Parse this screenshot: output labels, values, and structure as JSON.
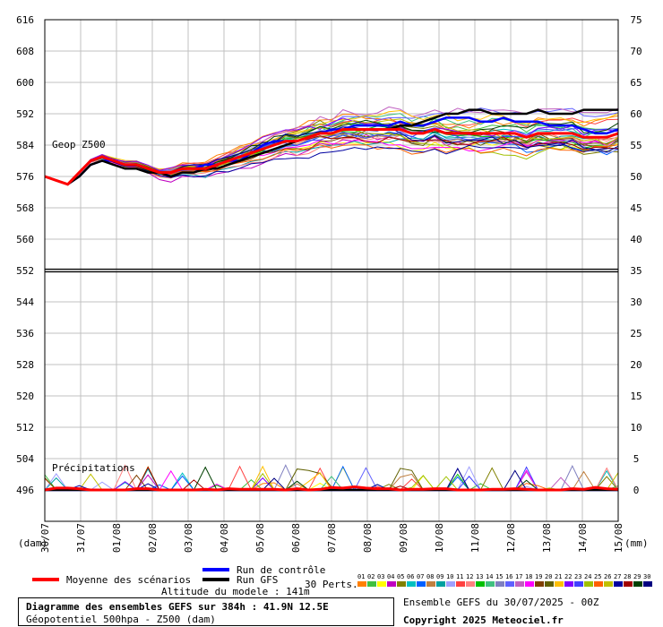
{
  "chart_data": {
    "type": "line",
    "left_axis_ticks": [
      "616",
      "608",
      "600",
      "592",
      "584",
      "576",
      "568",
      "560",
      "552",
      "544",
      "536",
      "528",
      "520",
      "512",
      "504",
      "496"
    ],
    "right_axis_ticks": [
      "75",
      "70",
      "65",
      "60",
      "55",
      "50",
      "45",
      "40",
      "35",
      "30",
      "25",
      "20",
      "15",
      "10",
      "5",
      "0"
    ],
    "x_ticks": [
      "30/07",
      "31/07",
      "01/08",
      "02/08",
      "03/08",
      "04/08",
      "05/08",
      "06/08",
      "07/08",
      "08/08",
      "09/08",
      "10/08",
      "11/08",
      "12/08",
      "13/08",
      "14/08",
      "15/08"
    ],
    "left_unit": "(dam)",
    "right_unit": "(mm)",
    "geop_label": "Geop Z500",
    "precip_label": "Précipitations",
    "geop_ylim": [
      552,
      616
    ],
    "precip_ylim": [
      0,
      75
    ],
    "series": [
      {
        "name": "Moyenne des scénarios",
        "color": "#ff0000",
        "z500": [
          576,
          575,
          574,
          577,
          580,
          581,
          580,
          579,
          579,
          578,
          577,
          577,
          578,
          578,
          578,
          579,
          580,
          581,
          582,
          583,
          584,
          585,
          585,
          586,
          587,
          587,
          588,
          588,
          588,
          588,
          588,
          588,
          587,
          587,
          588,
          587,
          587,
          587,
          587,
          587,
          587,
          587,
          586,
          587,
          587,
          587,
          587,
          586,
          586,
          586,
          587
        ],
        "precip": [
          0,
          0.3,
          0.3,
          0.2,
          0,
          0,
          0,
          0,
          0.2,
          0.2,
          0,
          0,
          0,
          0,
          0.1,
          0,
          0.2,
          0.1,
          0.1,
          0.1,
          0.1,
          0,
          0.2,
          0,
          0.1,
          0.4,
          0.3,
          0.5,
          0.3,
          0.2,
          0.2,
          0,
          0.1,
          0.1,
          0.2,
          0.2,
          0,
          0,
          0,
          0.1,
          0.1,
          0.2,
          0.1,
          0,
          0,
          0,
          0.2,
          0.1,
          0.4,
          0.2,
          0.1
        ]
      },
      {
        "name": "Run de contrôle",
        "color": "#0000ff",
        "z500": [
          576,
          575,
          574,
          576,
          579,
          580,
          580,
          579,
          579,
          578,
          577,
          577,
          578,
          578,
          579,
          579,
          580,
          580,
          582,
          584,
          585,
          585,
          585,
          586,
          587,
          588,
          588,
          589,
          589,
          589,
          589,
          590,
          589,
          589,
          590,
          591,
          591,
          591,
          590,
          590,
          591,
          590,
          590,
          590,
          589,
          589,
          589,
          588,
          587,
          587,
          588
        ],
        "precip": [
          0,
          0,
          0,
          0,
          0,
          0,
          0,
          0,
          0,
          0,
          0,
          0,
          0,
          0,
          0,
          0,
          0,
          0,
          0,
          0,
          0,
          0,
          0,
          0,
          0,
          0,
          0,
          0,
          0,
          0,
          0,
          0,
          0,
          0,
          0,
          0,
          0,
          0,
          0,
          0,
          0,
          0,
          0,
          0,
          0,
          0,
          0,
          0,
          0,
          0,
          0
        ]
      },
      {
        "name": "Run GFS",
        "color": "#000000",
        "z500": [
          576,
          575,
          574,
          576,
          579,
          580,
          579,
          578,
          578,
          577,
          577,
          576,
          577,
          577,
          578,
          578,
          579,
          580,
          581,
          582,
          583,
          584,
          585,
          586,
          587,
          587,
          588,
          588,
          588,
          588,
          588,
          589,
          589,
          590,
          591,
          592,
          592,
          593,
          593,
          592,
          592,
          592,
          592,
          593,
          592,
          592,
          592,
          593,
          593,
          593,
          593
        ],
        "precip": [
          0,
          0,
          0,
          0,
          0,
          0,
          0,
          0,
          0,
          0,
          0,
          0,
          0,
          0,
          0,
          0,
          0,
          0,
          0,
          0,
          0,
          0,
          0,
          0,
          0,
          0,
          0,
          0,
          0,
          0,
          0,
          0,
          0,
          0,
          0,
          0,
          0,
          0,
          0,
          0,
          0,
          0,
          0,
          0,
          0,
          0,
          0,
          0,
          0,
          0,
          0
        ]
      }
    ],
    "perturbations_count": 30,
    "perturbations_label": "30 Perts.",
    "perturbation_ids": [
      "01",
      "02",
      "03",
      "04",
      "05",
      "06",
      "07",
      "08",
      "09",
      "10",
      "11",
      "12",
      "13",
      "14",
      "15",
      "16",
      "17",
      "18",
      "19",
      "20",
      "21",
      "22",
      "23",
      "24",
      "25",
      "26",
      "27",
      "28",
      "29",
      "30"
    ],
    "perturbation_colors": [
      "#ff8000",
      "#40c040",
      "#ffff00",
      "#c000c0",
      "#808000",
      "#00c0c0",
      "#0060ff",
      "#c08040",
      "#00a0a0",
      "#a0a0ff",
      "#ff4040",
      "#ff8080",
      "#00c000",
      "#40c080",
      "#8080c0",
      "#6060ff",
      "#c060c0",
      "#ff00ff",
      "#804000",
      "#606000",
      "#ffc000",
      "#8000ff",
      "#4040ff",
      "#a0c000",
      "#ff6000",
      "#c0c000",
      "#0000a0",
      "#a00000",
      "#004000",
      "#000080"
    ]
  },
  "legend": {
    "mean": "Moyenne des scénarios",
    "control": "Run de contrôle",
    "gfs": "Run GFS",
    "altitude": "Altitude du modele : 141m"
  },
  "footer": {
    "title": "Diagramme des ensembles GEFS sur 384h : 41.9N 12.5E",
    "subtitle": "Géopotentiel 500hpa - Z500 (dam)",
    "run_info": "Ensemble GEFS du 30/07/2025 - 00Z",
    "copyright": "Copyright 2025 Meteociel.fr"
  },
  "colors": {
    "mean": "#ff0000",
    "control": "#0000ff",
    "gfs": "#000000",
    "grid": "#c0c0c0"
  }
}
